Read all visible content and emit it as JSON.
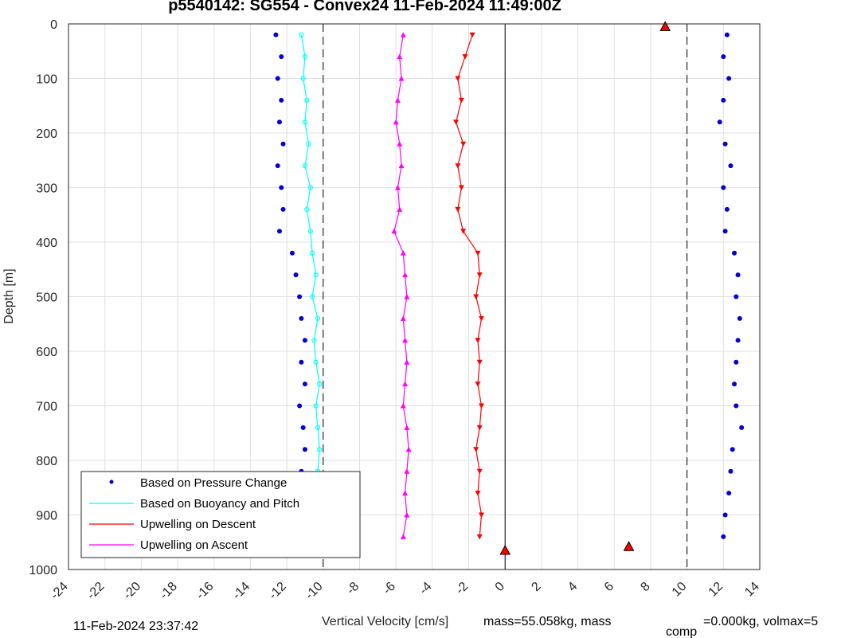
{
  "colors": {
    "pressure": "#0000d4",
    "buoyancy": "#00ffff",
    "upwelling_descent": "#ff0000",
    "upwelling_ascent": "#ff00ff",
    "grid": "#e0e0e0",
    "axis": "#262626"
  },
  "footer": {
    "timestamp": "11-Feb-2024 23:37:42",
    "mass_text": "mass=55.058kg, mass",
    "comp_sub": "comp",
    "comp_text": "=0.000kg, volmax=5"
  },
  "chart_data": {
    "type": "scatter",
    "title": "p5540142: SG554 - Convex24 11-Feb-2024 11:49:00Z",
    "xlabel": "Vertical Velocity [cm/s]",
    "ylabel": "Depth [m]",
    "xlim": [
      -24,
      14
    ],
    "ylim": [
      0,
      1000
    ],
    "y_reversed": true,
    "grid": true,
    "xticks": [
      -24,
      -22,
      -20,
      -18,
      -16,
      -14,
      -12,
      -10,
      -8,
      -6,
      -4,
      -2,
      0,
      2,
      4,
      6,
      8,
      10,
      12,
      14
    ],
    "yticks": [
      0,
      100,
      200,
      300,
      400,
      500,
      600,
      700,
      800,
      900,
      1000
    ],
    "xtick_labels": [
      "-24",
      "-22",
      "-20",
      "-18",
      "-16",
      "-14",
      "-12",
      "-10",
      "-8",
      "-6",
      "-4",
      "-2",
      "0",
      "2",
      "4",
      "6",
      "8",
      "10",
      "12",
      "14"
    ],
    "ytick_labels": [
      "0",
      "100",
      "200",
      "300",
      "400",
      "500",
      "600",
      "700",
      "800",
      "900",
      "1000"
    ],
    "reference_lines": [
      {
        "x": 0,
        "style": "solid"
      },
      {
        "x": -10,
        "style": "dashed"
      },
      {
        "x": 10,
        "style": "dashed"
      }
    ],
    "legend": {
      "location": "bottom-left",
      "entries": [
        {
          "label": "Based on Pressure Change",
          "series": "pressure"
        },
        {
          "label": "Based on Buoyancy and Pitch",
          "series": "buoyancy"
        },
        {
          "label": "Upwelling on Descent",
          "series": "upwelling_descent"
        },
        {
          "label": "Upwelling on Ascent",
          "series": "upwelling_ascent"
        }
      ]
    },
    "series": [
      {
        "key": "pressure_descent",
        "name": "Based on Pressure Change",
        "color": "#0000d4",
        "depth": [
          20,
          60,
          100,
          140,
          180,
          220,
          260,
          300,
          340,
          380,
          420,
          460,
          500,
          540,
          580,
          620,
          660,
          700,
          740,
          780,
          820,
          860,
          900,
          940
        ],
        "values": [
          -12.6,
          -12.3,
          -12.5,
          -12.3,
          -12.4,
          -12.2,
          -12.5,
          -12.3,
          -12.2,
          -12.4,
          -11.7,
          -11.5,
          -11.3,
          -11.2,
          -11.0,
          -11.2,
          -11.0,
          -11.3,
          -11.1,
          -11.0,
          -11.2,
          -11.3,
          -11.0,
          -11.1
        ]
      },
      {
        "key": "pressure_ascent",
        "name": "Based on Pressure Change",
        "color": "#0000d4",
        "depth": [
          20,
          60,
          100,
          140,
          180,
          220,
          260,
          300,
          340,
          380,
          420,
          460,
          500,
          540,
          580,
          620,
          660,
          700,
          740,
          780,
          820,
          860,
          900,
          940
        ],
        "values": [
          12.2,
          12.0,
          12.3,
          12.0,
          11.8,
          12.1,
          12.4,
          12.0,
          12.2,
          12.1,
          12.6,
          12.8,
          12.7,
          12.9,
          12.8,
          12.7,
          12.6,
          12.7,
          13.0,
          12.5,
          12.4,
          12.3,
          12.1,
          12.0
        ]
      },
      {
        "key": "buoyancy",
        "name": "Based on Buoyancy and Pitch",
        "color": "#00ffff",
        "depth": [
          20,
          60,
          100,
          140,
          180,
          220,
          260,
          300,
          340,
          380,
          420,
          460,
          500,
          540,
          580,
          620,
          660,
          700,
          740,
          780,
          820,
          860,
          900,
          940
        ],
        "values": [
          -11.2,
          -11.0,
          -11.1,
          -10.9,
          -11.0,
          -10.8,
          -11.0,
          -10.7,
          -10.9,
          -10.7,
          -10.6,
          -10.4,
          -10.6,
          -10.3,
          -10.5,
          -10.4,
          -10.2,
          -10.4,
          -10.3,
          -10.2,
          -10.3,
          -10.2,
          -10.1,
          -10.2
        ]
      },
      {
        "key": "upwelling_descent",
        "name": "Upwelling on Descent",
        "color": "#ff0000",
        "depth": [
          20,
          60,
          100,
          140,
          180,
          220,
          260,
          300,
          340,
          380,
          420,
          460,
          500,
          540,
          580,
          620,
          660,
          700,
          740,
          780,
          820,
          860,
          900,
          940
        ],
        "values": [
          -1.8,
          -2.2,
          -2.6,
          -2.4,
          -2.7,
          -2.3,
          -2.6,
          -2.4,
          -2.6,
          -2.3,
          -1.5,
          -1.4,
          -1.6,
          -1.3,
          -1.5,
          -1.4,
          -1.5,
          -1.3,
          -1.4,
          -1.6,
          -1.4,
          -1.5,
          -1.3,
          -1.4
        ]
      },
      {
        "key": "upwelling_ascent",
        "name": "Upwelling on Ascent",
        "color": "#ff00ff",
        "depth": [
          20,
          60,
          100,
          140,
          180,
          220,
          260,
          300,
          340,
          380,
          420,
          460,
          500,
          540,
          580,
          620,
          660,
          700,
          740,
          780,
          820,
          860,
          900,
          940
        ],
        "values": [
          -5.6,
          -5.8,
          -5.7,
          -5.9,
          -6.0,
          -5.8,
          -5.7,
          -5.9,
          -5.8,
          -6.1,
          -5.6,
          -5.5,
          -5.4,
          -5.6,
          -5.5,
          -5.4,
          -5.5,
          -5.6,
          -5.4,
          -5.3,
          -5.4,
          -5.5,
          -5.4,
          -5.6
        ]
      }
    ],
    "apogee_markers": [
      {
        "x": 6.8,
        "y": 958,
        "color": "#ff0000"
      },
      {
        "x": -11.0,
        "y": 960,
        "color": "#ff0000"
      },
      {
        "x": 0.0,
        "y": 965,
        "color": "#ff0000"
      },
      {
        "x": 8.8,
        "y": 5,
        "color": "#ff0000"
      }
    ]
  }
}
